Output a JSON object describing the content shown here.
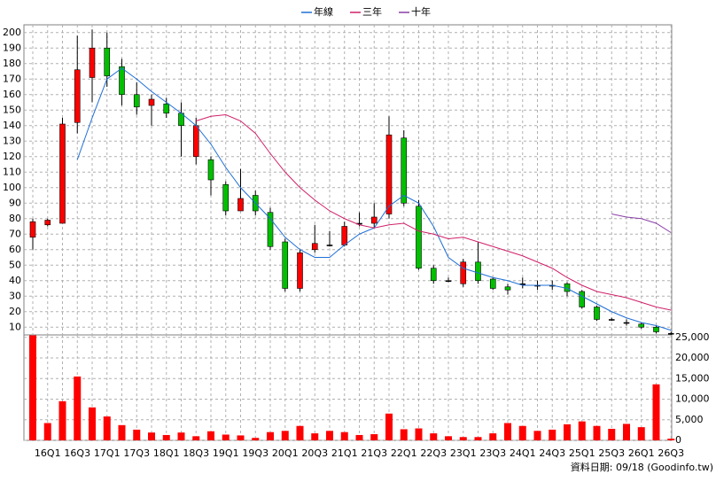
{
  "chart_data": [
    {
      "type": "candlestick",
      "legend": "top",
      "grid": true,
      "up_color": "#ff0000",
      "down_color": "#00c000",
      "flat_color": "#000000",
      "open": [
        68,
        76,
        77,
        142,
        171,
        190,
        178,
        160,
        153,
        154,
        148,
        120,
        118,
        102,
        85,
        95,
        84,
        65,
        35,
        60,
        63,
        63,
        77,
        77,
        83,
        132,
        88,
        48,
        40,
        38,
        52,
        41,
        36,
        38,
        37,
        37,
        38,
        33,
        23,
        15,
        13,
        12,
        10,
        6
      ],
      "high": [
        80,
        80,
        145,
        198,
        202,
        200,
        183,
        168,
        160,
        158,
        155,
        145,
        120,
        104,
        112,
        98,
        87,
        67,
        60,
        76,
        72,
        78,
        84,
        90,
        146,
        137,
        92,
        50,
        42,
        54,
        65,
        42,
        38,
        42,
        40,
        40,
        39,
        34,
        24,
        16,
        15,
        13,
        11,
        7
      ],
      "low": [
        60,
        75,
        77,
        135,
        155,
        165,
        153,
        147,
        140,
        145,
        120,
        115,
        95,
        82,
        85,
        82,
        60,
        33,
        33,
        58,
        62,
        62,
        75,
        74,
        80,
        88,
        47,
        38,
        39,
        36,
        38,
        34,
        31,
        35,
        34,
        34,
        30,
        22,
        14,
        14,
        11,
        9,
        6,
        5
      ],
      "close": [
        78,
        79,
        141,
        176,
        190,
        172,
        160,
        152,
        157,
        148,
        140,
        140,
        105,
        85,
        93,
        85,
        62,
        35,
        58,
        64,
        63,
        75,
        77,
        81,
        134,
        90,
        48,
        40,
        40,
        52,
        40,
        35,
        34,
        38,
        37,
        37,
        33,
        23,
        15,
        15,
        13,
        10,
        7,
        6
      ],
      "series": [
        {
          "name": "年線",
          "color": "#1f6fd6",
          "values": [
            null,
            null,
            null,
            118,
            145,
            170,
            177,
            170,
            162,
            155,
            148,
            140,
            128,
            113,
            100,
            90,
            80,
            68,
            60,
            55,
            55,
            63,
            70,
            74,
            88,
            95,
            90,
            75,
            55,
            48,
            45,
            42,
            40,
            37,
            37,
            37,
            35,
            30,
            25,
            20,
            16,
            13,
            11,
            8
          ]
        },
        {
          "name": "三年",
          "color": "#d0206a",
          "values": [
            null,
            null,
            null,
            null,
            null,
            null,
            null,
            null,
            null,
            null,
            null,
            143,
            146,
            147,
            143,
            135,
            122,
            110,
            100,
            92,
            85,
            80,
            76,
            74,
            76,
            77,
            72,
            70,
            67,
            68,
            65,
            62,
            59,
            56,
            52,
            48,
            42,
            37,
            33,
            31,
            29,
            26,
            23,
            21
          ]
        },
        {
          "name": "十年",
          "color": "#8a3fa8",
          "values": [
            null,
            null,
            null,
            null,
            null,
            null,
            null,
            null,
            null,
            null,
            null,
            null,
            null,
            null,
            null,
            null,
            null,
            null,
            null,
            null,
            null,
            null,
            null,
            null,
            null,
            null,
            null,
            null,
            null,
            null,
            null,
            null,
            null,
            null,
            null,
            null,
            null,
            null,
            null,
            83,
            81,
            80,
            77,
            71
          ]
        }
      ],
      "ylim": [
        5,
        205
      ],
      "yticks": [
        10,
        20,
        30,
        40,
        50,
        60,
        70,
        80,
        90,
        100,
        110,
        120,
        130,
        140,
        150,
        160,
        170,
        180,
        190,
        200
      ]
    },
    {
      "type": "bar",
      "color": "#ff0000",
      "note": "資料日期: 09/18 (Goodinfo.tw)",
      "categories": [
        null,
        "16Q1",
        null,
        "16Q3",
        null,
        "17Q1",
        null,
        "17Q3",
        null,
        "18Q1",
        null,
        "18Q3",
        null,
        "19Q1",
        null,
        "19Q3",
        null,
        "20Q1",
        null,
        "20Q3",
        null,
        "21Q1",
        null,
        "21Q3",
        null,
        "22Q1",
        null,
        "22Q3",
        null,
        "23Q1",
        null,
        "23Q3",
        null,
        "24Q1",
        null,
        "24Q3",
        null,
        "25Q1",
        null,
        "25Q3",
        null,
        "26Q1",
        null,
        "26Q3"
      ],
      "values": [
        25500,
        4200,
        9500,
        15500,
        8000,
        5800,
        3700,
        2600,
        1900,
        1300,
        1900,
        1000,
        2200,
        1400,
        1200,
        600,
        2000,
        2300,
        3500,
        1700,
        2300,
        2000,
        1300,
        1500,
        6500,
        2700,
        2900,
        1700,
        1000,
        800,
        800,
        1700,
        4200,
        3500,
        2300,
        2600,
        3900,
        4600,
        3500,
        2800,
        4000,
        3200,
        13600,
        400
      ],
      "ylim": [
        0,
        25600
      ],
      "yticks": [
        0,
        {
          "value": 5000,
          "label": "5,000"
        },
        {
          "value": 10000,
          "label": "10,000"
        },
        {
          "value": 15000,
          "label": "15,000"
        },
        {
          "value": 20000,
          "label": "20,000"
        },
        {
          "value": 25000,
          "label": "25,000"
        }
      ]
    }
  ]
}
